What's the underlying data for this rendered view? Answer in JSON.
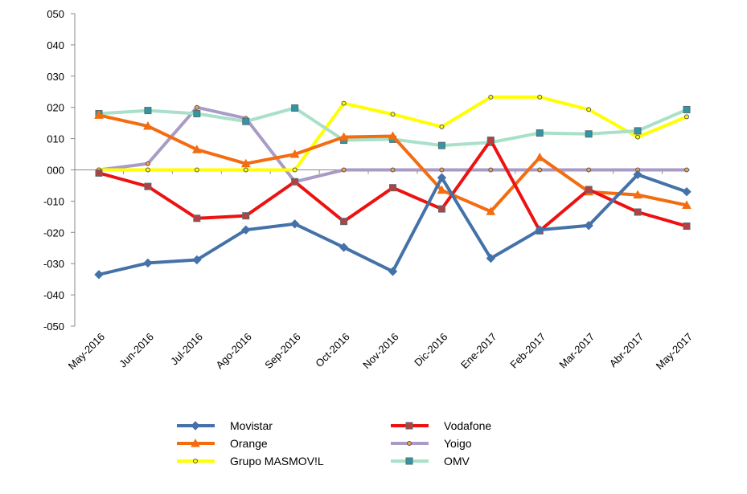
{
  "chart_data": {
    "type": "line",
    "title": "",
    "xlabel": "",
    "ylabel": "",
    "ylim": [
      -50,
      50
    ],
    "ytick_labels": [
      "050",
      "040",
      "030",
      "020",
      "010",
      "000",
      "-010",
      "-020",
      "-030",
      "-040",
      "-050"
    ],
    "ytick_values": [
      50,
      40,
      30,
      20,
      10,
      0,
      -10,
      -20,
      -30,
      -40,
      -50
    ],
    "categories": [
      "May-2016",
      "Jun-2016",
      "Jul-2016",
      "Ago-2016",
      "Sep-2016",
      "Oct-2016",
      "Nov-2016",
      "Dic-2016",
      "Ene-2017",
      "Feb-2017",
      "Mar-2017",
      "Abr-2017",
      "May-2017"
    ],
    "grid": false,
    "legend_position": "bottom",
    "series": [
      {
        "name": "Movistar",
        "color": "#4472A8",
        "marker": "diamond",
        "values": [
          -33.5,
          -29.8,
          -28.8,
          -19.2,
          -17.3,
          -24.8,
          -32.5,
          -2.5,
          -28.3,
          -19.2,
          -17.8,
          -1.5,
          -7.0
        ]
      },
      {
        "name": "Orange",
        "color": "#F36C10",
        "marker": "triangle",
        "values": [
          17.5,
          14.0,
          6.5,
          2.0,
          5.0,
          10.5,
          10.8,
          -6.5,
          -13.3,
          4.0,
          -7.0,
          -8.0,
          -11.3
        ]
      },
      {
        "name": "Grupo MASMOV!L",
        "color": "#FFFF00",
        "marker": "circle",
        "values": [
          0,
          0,
          0,
          0,
          0,
          21.3,
          17.8,
          13.8,
          23.3,
          23.3,
          19.3,
          10.5,
          17.0
        ]
      },
      {
        "name": "Vodafone",
        "color": "#EE1111",
        "marker": "square",
        "values": [
          -1.0,
          -5.3,
          -15.5,
          -14.7,
          -3.8,
          -16.5,
          -5.7,
          -12.5,
          9.5,
          -19.5,
          -6.3,
          -13.5,
          -18.0
        ]
      },
      {
        "name": "Yoigo",
        "color": "#A99BC6",
        "marker": "circle",
        "values": [
          0,
          2.0,
          20.0,
          16.5,
          -3.8,
          0,
          0,
          0,
          0,
          0,
          0,
          0,
          0
        ]
      },
      {
        "name": "OMV",
        "color": "#A8E0C8",
        "marker": "square",
        "values": [
          18.0,
          19.0,
          18.0,
          15.5,
          19.8,
          9.5,
          9.8,
          7.8,
          8.8,
          11.8,
          11.5,
          12.5,
          19.3
        ]
      }
    ]
  }
}
